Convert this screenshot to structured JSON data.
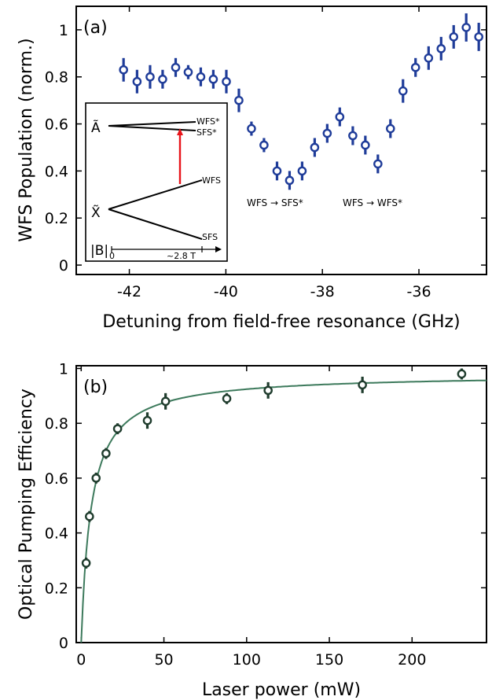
{
  "chart_data": [
    {
      "type": "scatter",
      "panel_label": "(a)",
      "xlabel": "Detuning from field-free resonance (GHz)",
      "ylabel": "WFS Population (norm.)",
      "xlim": [
        -43.1,
        -34.6
      ],
      "ylim": [
        -0.04,
        1.1
      ],
      "xticks": [
        -42,
        -40,
        -38,
        -36
      ],
      "yticks": [
        0,
        0.2,
        0.4,
        0.6,
        0.8,
        1
      ],
      "xtick_labels": [
        "-42",
        "-40",
        "-38",
        "-36"
      ],
      "ytick_labels": [
        "0",
        "0.2",
        "0.4",
        "0.6",
        "0.8",
        "1"
      ],
      "grid": false,
      "marker_color": "#1f3c99",
      "series": [
        {
          "x": [
            -42.12,
            -41.84,
            -41.57,
            -41.31,
            -41.04,
            -40.78,
            -40.52,
            -40.26,
            -39.99,
            -39.73,
            -39.47,
            -39.21,
            -38.94,
            -38.68,
            -38.42,
            -38.16,
            -37.9,
            -37.64,
            -37.37,
            -37.11,
            -36.85,
            -36.59,
            -36.33,
            -36.07,
            -35.8,
            -35.54,
            -35.28,
            -35.02,
            -34.76
          ],
          "y": [
            0.83,
            0.78,
            0.8,
            0.79,
            0.84,
            0.82,
            0.8,
            0.79,
            0.78,
            0.7,
            0.58,
            0.51,
            0.4,
            0.36,
            0.4,
            0.5,
            0.56,
            0.63,
            0.55,
            0.51,
            0.43,
            0.58,
            0.74,
            0.84,
            0.88,
            0.92,
            0.97,
            1.01,
            0.97
          ],
          "yerr": [
            0.05,
            0.05,
            0.05,
            0.04,
            0.04,
            0.03,
            0.04,
            0.04,
            0.05,
            0.05,
            0.03,
            0.03,
            0.04,
            0.04,
            0.04,
            0.04,
            0.04,
            0.04,
            0.04,
            0.04,
            0.04,
            0.04,
            0.05,
            0.04,
            0.05,
            0.05,
            0.05,
            0.06,
            0.06
          ]
        }
      ],
      "annotations": [
        "WFS → SFS*",
        "WFS → WFS*"
      ],
      "inset": {
        "upper_state": "Ã",
        "lower_state": "X̃",
        "levels": [
          "WFS*",
          "SFS*",
          "WFS",
          "SFS"
        ],
        "axis_symbol": "|B|",
        "axis_start": "0",
        "axis_end": "~2.8 T",
        "transition_color": "#e8141a"
      }
    },
    {
      "type": "scatter",
      "panel_label": "(b)",
      "xlabel": "Laser power (mW)",
      "ylabel": "Optical Pumping Efficiency",
      "xlim": [
        -3,
        245
      ],
      "ylim": [
        0,
        1.01
      ],
      "xticks": [
        0,
        50,
        100,
        150,
        200
      ],
      "yticks": [
        0,
        0.2,
        0.4,
        0.6,
        0.8,
        1
      ],
      "xtick_labels": [
        "0",
        "50",
        "100",
        "150",
        "200"
      ],
      "ytick_labels": [
        "0",
        "0.2",
        "0.4",
        "0.6",
        "0.8",
        "1"
      ],
      "grid": false,
      "marker_color": "#1f3c2d",
      "fit_color": "#3d7a5c",
      "series": [
        {
          "x": [
            3,
            5,
            9,
            15,
            22,
            40,
            51,
            88,
            113,
            170,
            230
          ],
          "y": [
            0.29,
            0.46,
            0.6,
            0.69,
            0.78,
            0.81,
            0.88,
            0.89,
            0.92,
            0.94,
            0.98
          ],
          "yerr": [
            0.02,
            0.02,
            0.02,
            0.02,
            0.02,
            0.03,
            0.03,
            0.02,
            0.03,
            0.03,
            0.02
          ]
        }
      ],
      "fit": {
        "model": "saturation",
        "a": 0.98,
        "p_sat": 6.0
      }
    }
  ]
}
